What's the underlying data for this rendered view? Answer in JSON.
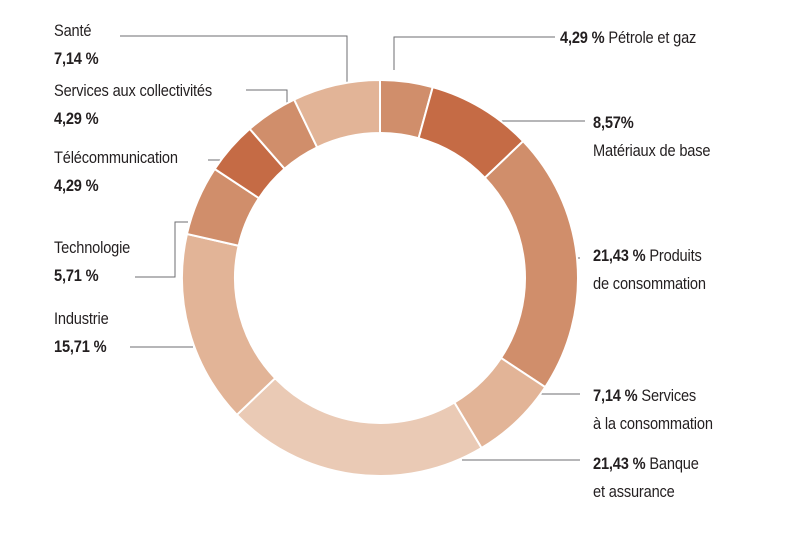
{
  "chart_data": {
    "type": "pie",
    "variant": "donut",
    "start": "top, clockwise",
    "segments": [
      {
        "name": "Pétrole et gaz",
        "value": 4.29,
        "label_pct": "4,29 %",
        "color": "#d08e6b"
      },
      {
        "name": "Matériaux de base",
        "value": 8.57,
        "label_pct": "8,57%",
        "color": "#c56b45"
      },
      {
        "name": "Produits de consommation",
        "value": 21.43,
        "label_pct": "21,43 %",
        "color": "#d08e6b"
      },
      {
        "name": "Services à la consommation",
        "value": 7.14,
        "label_pct": "7,14 %",
        "color": "#e2b497"
      },
      {
        "name": "Banque et assurance",
        "value": 21.43,
        "label_pct": "21,43 %",
        "color": "#eacab5"
      },
      {
        "name": "Industrie",
        "value": 15.71,
        "label_pct": "15,71 %",
        "color": "#e2b497"
      },
      {
        "name": "Technologie",
        "value": 5.71,
        "label_pct": "5,71 %",
        "color": "#d08e6b"
      },
      {
        "name": "Télécommunication",
        "value": 4.29,
        "label_pct": "4,29 %",
        "color": "#c56b45"
      },
      {
        "name": "Services aux collectivités",
        "value": 4.29,
        "label_pct": "4,29 %",
        "color": "#d08e6b"
      },
      {
        "name": "Santé",
        "value": 7.14,
        "label_pct": "7,14 %",
        "color": "#e2b497"
      }
    ]
  },
  "labels": {
    "petrole": {
      "pct": "4,29 %",
      "text": "Pétrole et gaz"
    },
    "materiaux": {
      "pct": "8,57%",
      "text": "Matériaux de base"
    },
    "produits": {
      "pct": "21,43 %",
      "text1": "Produits",
      "text2": "de consommation"
    },
    "services_conso": {
      "pct": "7,14 %",
      "text1": "Services",
      "text2": "à la consommation"
    },
    "banque": {
      "pct": "21,43 %",
      "text1": "Banque",
      "text2": "et assurance"
    },
    "industrie": {
      "name": "Industrie",
      "pct": "15,71 %"
    },
    "technologie": {
      "name": "Technologie",
      "pct": "5,71 %"
    },
    "telecom": {
      "name": "Télécommunication",
      "pct": "4,29 %"
    },
    "collectivites": {
      "name": "Services aux collectivités",
      "pct": "4,29 %"
    },
    "sante": {
      "name": "Santé",
      "pct": "7,14 %"
    }
  }
}
